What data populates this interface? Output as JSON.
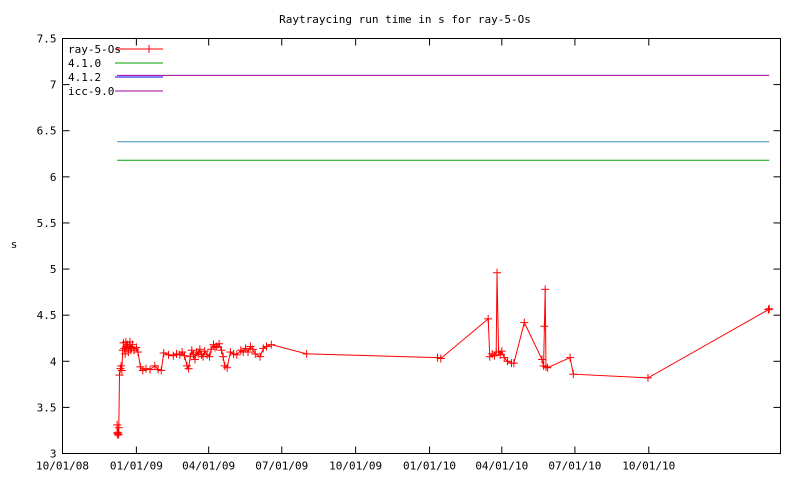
{
  "chart_data": {
    "type": "line",
    "title": "Raytraycing run time in s for ray-5-Os",
    "xlabel": "",
    "ylabel": "s",
    "ylim": [
      3,
      7.5
    ],
    "xlim": [
      "2008-10-01",
      "2011-03-14"
    ],
    "yticks": [
      "3",
      "3.5",
      "4",
      "4.5",
      "5",
      "5.5",
      "6",
      "6.5",
      "7",
      "7.5"
    ],
    "xticks": [
      {
        "label": "10/01/08",
        "date": "2008-10-01"
      },
      {
        "label": "01/01/09",
        "date": "2009-01-01"
      },
      {
        "label": "04/01/09",
        "date": "2009-04-01"
      },
      {
        "label": "07/01/09",
        "date": "2009-07-01"
      },
      {
        "label": "10/01/09",
        "date": "2009-10-01"
      },
      {
        "label": "01/01/10",
        "date": "2010-01-01"
      },
      {
        "label": "04/01/10",
        "date": "2010-04-01"
      },
      {
        "label": "07/01/10",
        "date": "2010-07-01"
      },
      {
        "label": "10/01/10",
        "date": "2010-10-01"
      }
    ],
    "grid": false,
    "legend_position": "top-left",
    "series": [
      {
        "name": "ray-5-Os",
        "color": "#ff0000",
        "marker": "plus",
        "points": [
          [
            "2008-12-08",
            3.31
          ],
          [
            "2008-12-08",
            3.22
          ],
          [
            "2008-12-09",
            3.2
          ],
          [
            "2008-12-09",
            3.23
          ],
          [
            "2008-12-10",
            3.28
          ],
          [
            "2008-12-10",
            3.21
          ],
          [
            "2008-12-11",
            3.85
          ],
          [
            "2008-12-12",
            3.92
          ],
          [
            "2008-12-13",
            3.95
          ],
          [
            "2008-12-14",
            3.9
          ],
          [
            "2008-12-15",
            4.12
          ],
          [
            "2008-12-16",
            4.2
          ],
          [
            "2008-12-17",
            4.14
          ],
          [
            "2008-12-18",
            4.08
          ],
          [
            "2008-12-19",
            4.21
          ],
          [
            "2008-12-20",
            4.15
          ],
          [
            "2008-12-21",
            4.18
          ],
          [
            "2008-12-22",
            4.1
          ],
          [
            "2008-12-23",
            4.16
          ],
          [
            "2008-12-24",
            4.21
          ],
          [
            "2008-12-25",
            4.12
          ],
          [
            "2008-12-26",
            4.14
          ],
          [
            "2008-12-27",
            4.18
          ],
          [
            "2008-12-29",
            4.12
          ],
          [
            "2009-01-01",
            4.15
          ],
          [
            "2009-01-03",
            4.1
          ],
          [
            "2009-01-06",
            3.94
          ],
          [
            "2009-01-09",
            3.9
          ],
          [
            "2009-01-13",
            3.92
          ],
          [
            "2009-01-18",
            3.91
          ],
          [
            "2009-01-24",
            3.95
          ],
          [
            "2009-01-28",
            3.91
          ],
          [
            "2009-02-01",
            3.9
          ],
          [
            "2009-02-04",
            4.09
          ],
          [
            "2009-02-10",
            4.07
          ],
          [
            "2009-02-16",
            4.06
          ],
          [
            "2009-02-20",
            4.08
          ],
          [
            "2009-02-24",
            4.07
          ],
          [
            "2009-02-27",
            4.1
          ],
          [
            "2009-03-02",
            4.06
          ],
          [
            "2009-03-05",
            3.95
          ],
          [
            "2009-03-07",
            3.92
          ],
          [
            "2009-03-09",
            4.05
          ],
          [
            "2009-03-11",
            4.12
          ],
          [
            "2009-03-13",
            4.07
          ],
          [
            "2009-03-15",
            4.02
          ],
          [
            "2009-03-17",
            4.1
          ],
          [
            "2009-03-19",
            4.08
          ],
          [
            "2009-03-21",
            4.13
          ],
          [
            "2009-03-23",
            4.07
          ],
          [
            "2009-03-25",
            4.05
          ],
          [
            "2009-03-27",
            4.11
          ],
          [
            "2009-03-30",
            4.07
          ],
          [
            "2009-04-02",
            4.05
          ],
          [
            "2009-04-04",
            4.13
          ],
          [
            "2009-04-07",
            4.18
          ],
          [
            "2009-04-09",
            4.15
          ],
          [
            "2009-04-11",
            4.16
          ],
          [
            "2009-04-14",
            4.19
          ],
          [
            "2009-04-17",
            4.12
          ],
          [
            "2009-04-19",
            4.05
          ],
          [
            "2009-04-21",
            3.95
          ],
          [
            "2009-04-24",
            3.93
          ],
          [
            "2009-04-28",
            4.1
          ],
          [
            "2009-05-02",
            4.08
          ],
          [
            "2009-05-06",
            4.07
          ],
          [
            "2009-05-11",
            4.12
          ],
          [
            "2009-05-14",
            4.1
          ],
          [
            "2009-05-17",
            4.14
          ],
          [
            "2009-05-20",
            4.1
          ],
          [
            "2009-05-23",
            4.16
          ],
          [
            "2009-05-26",
            4.13
          ],
          [
            "2009-05-29",
            4.08
          ],
          [
            "2009-06-04",
            4.05
          ],
          [
            "2009-06-08",
            4.14
          ],
          [
            "2009-06-12",
            4.16
          ],
          [
            "2009-06-18",
            4.18
          ],
          [
            "2009-08-01",
            4.08
          ],
          [
            "2010-01-11",
            4.04
          ],
          [
            "2010-01-15",
            4.03
          ],
          [
            "2010-03-15",
            4.46
          ],
          [
            "2010-03-17",
            4.05
          ],
          [
            "2010-03-20",
            4.08
          ],
          [
            "2010-03-23",
            4.06
          ],
          [
            "2010-03-25",
            4.1
          ],
          [
            "2010-03-26",
            4.96
          ],
          [
            "2010-03-28",
            4.1
          ],
          [
            "2010-03-30",
            4.07
          ],
          [
            "2010-04-01",
            4.11
          ],
          [
            "2010-04-04",
            4.04
          ],
          [
            "2010-04-08",
            4.0
          ],
          [
            "2010-04-13",
            3.98
          ],
          [
            "2010-04-16",
            3.98
          ],
          [
            "2010-04-29",
            4.42
          ],
          [
            "2010-05-21",
            4.02
          ],
          [
            "2010-05-23",
            3.95
          ],
          [
            "2010-05-24",
            4.38
          ],
          [
            "2010-05-25",
            4.78
          ],
          [
            "2010-05-26",
            3.94
          ],
          [
            "2010-05-28",
            3.93
          ],
          [
            "2010-06-25",
            4.04
          ],
          [
            "2010-06-29",
            3.86
          ],
          [
            "2010-09-30",
            3.82
          ],
          [
            "2011-02-27",
            4.56
          ],
          [
            "2011-02-28",
            4.57
          ]
        ]
      },
      {
        "name": "4.1.0",
        "color": "#00a000",
        "constant": 6.18,
        "from": "2008-12-08",
        "to": "2011-02-28"
      },
      {
        "name": "4.1.2",
        "color": "#0000ff",
        "constant": 6.38,
        "from": "2008-12-08",
        "to": "2011-02-28",
        "line_color": "#3a8fb8"
      },
      {
        "name": "icc-9.0",
        "color": "#a000a0",
        "constant": 7.1,
        "from": "2008-12-08",
        "to": "2011-02-28"
      }
    ]
  }
}
